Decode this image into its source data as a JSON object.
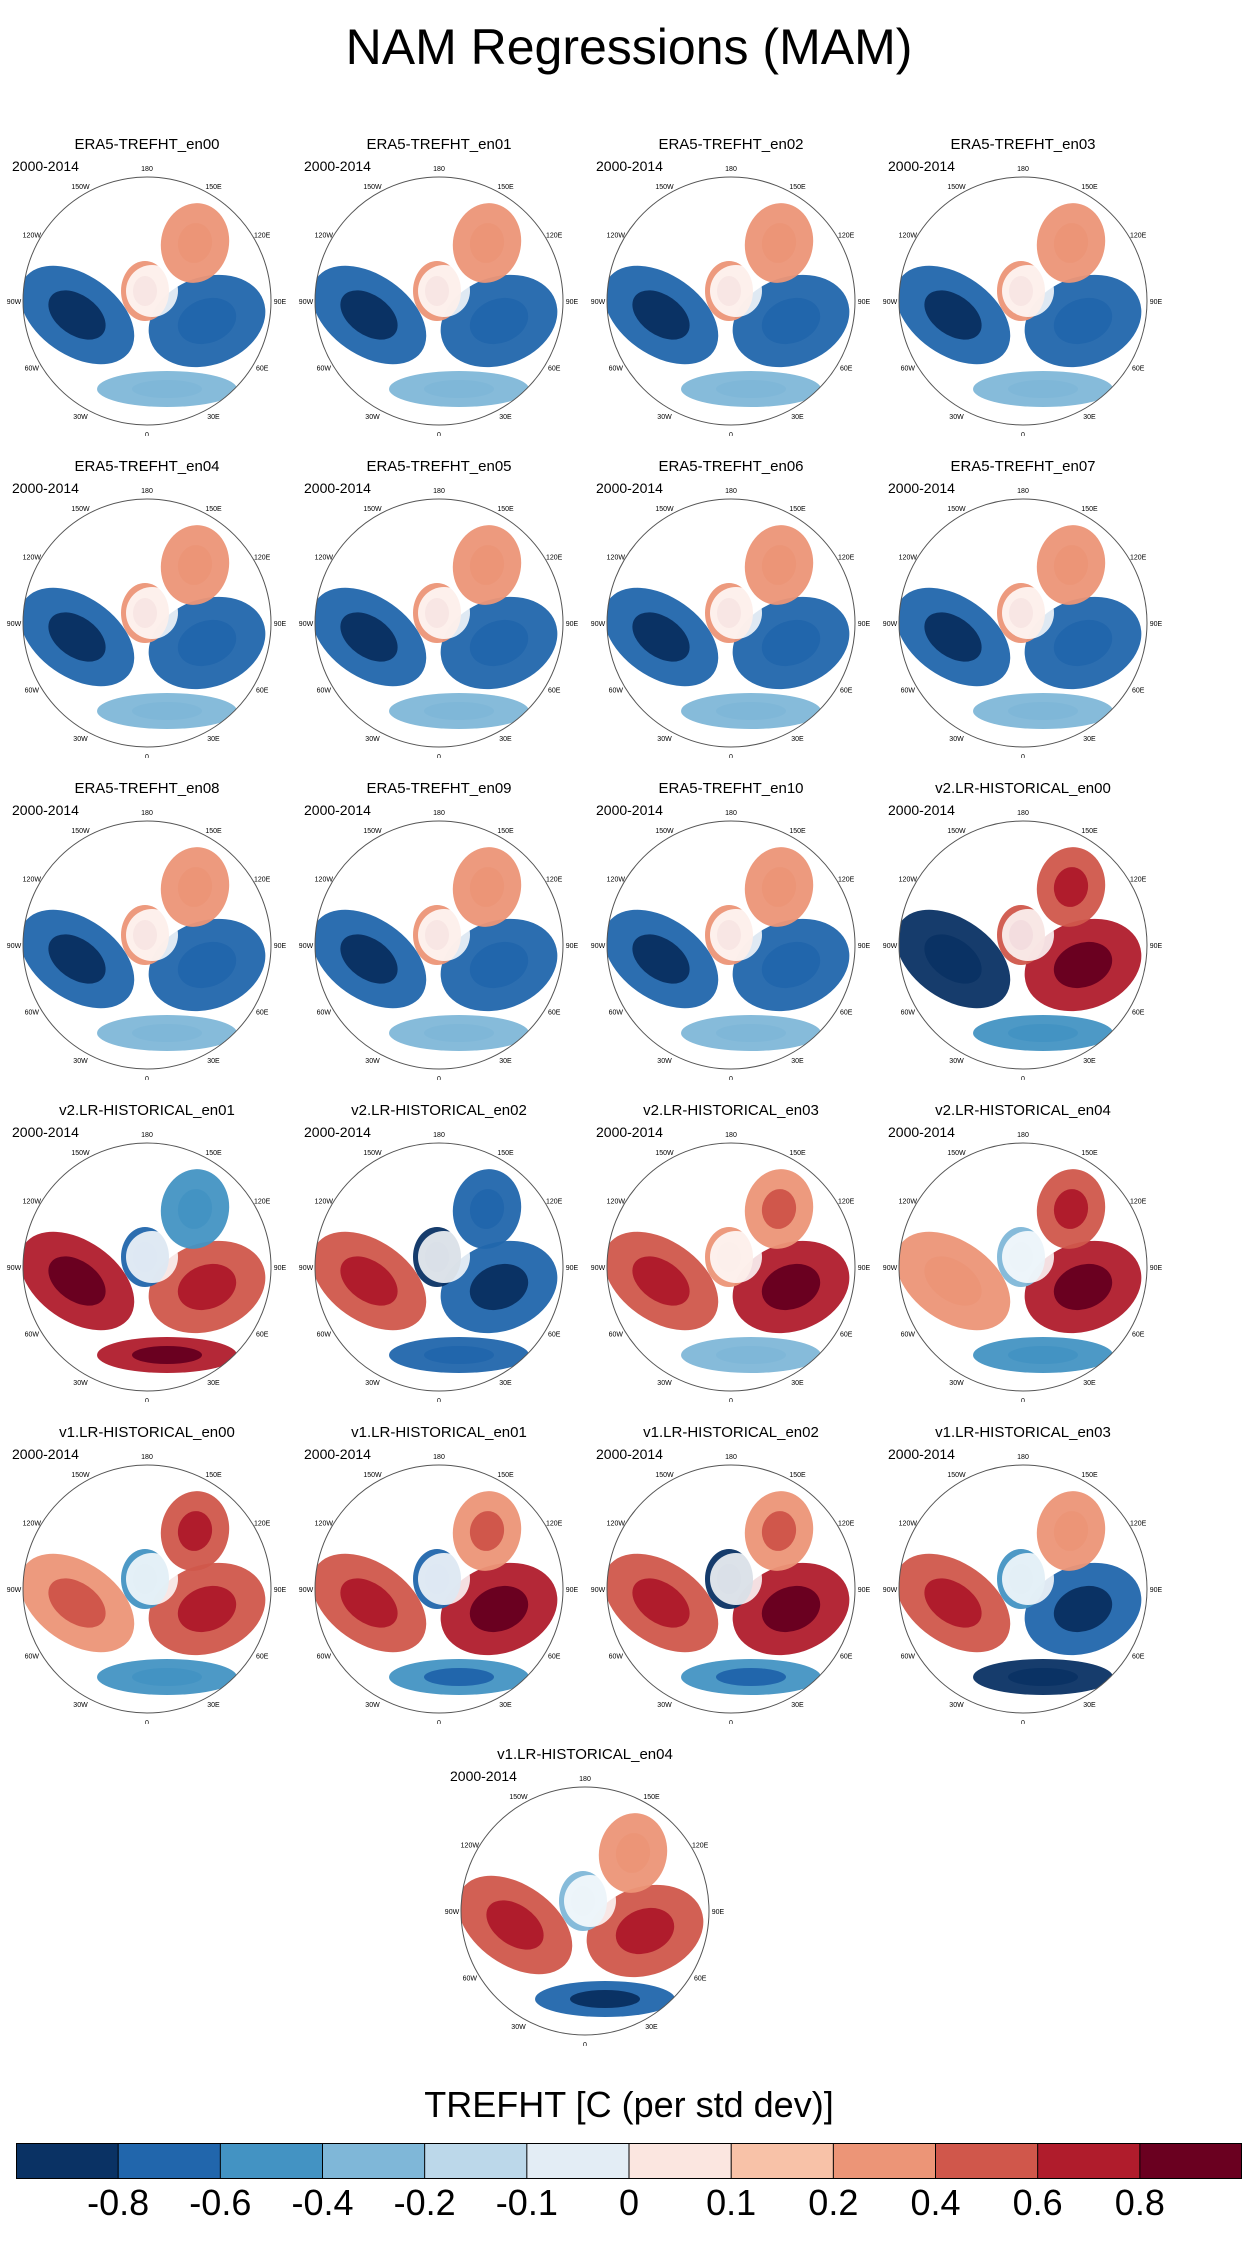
{
  "title": "NAM Regressions (MAM)",
  "panels": [
    {
      "title": "ERA5-TREFHT_en00",
      "period": "2000-2014"
    },
    {
      "title": "ERA5-TREFHT_en01",
      "period": "2000-2014"
    },
    {
      "title": "ERA5-TREFHT_en02",
      "period": "2000-2014"
    },
    {
      "title": "ERA5-TREFHT_en03",
      "period": "2000-2014"
    },
    {
      "title": "ERA5-TREFHT_en04",
      "period": "2000-2014"
    },
    {
      "title": "ERA5-TREFHT_en05",
      "period": "2000-2014"
    },
    {
      "title": "ERA5-TREFHT_en06",
      "period": "2000-2014"
    },
    {
      "title": "ERA5-TREFHT_en07",
      "period": "2000-2014"
    },
    {
      "title": "ERA5-TREFHT_en08",
      "period": "2000-2014"
    },
    {
      "title": "ERA5-TREFHT_en09",
      "period": "2000-2014"
    },
    {
      "title": "ERA5-TREFHT_en10",
      "period": "2000-2014"
    },
    {
      "title": "v2.LR-HISTORICAL_en00",
      "period": "2000-2014"
    },
    {
      "title": "v2.LR-HISTORICAL_en01",
      "period": "2000-2014"
    },
    {
      "title": "v2.LR-HISTORICAL_en02",
      "period": "2000-2014"
    },
    {
      "title": "v2.LR-HISTORICAL_en03",
      "period": "2000-2014"
    },
    {
      "title": "v2.LR-HISTORICAL_en04",
      "period": "2000-2014"
    },
    {
      "title": "v1.LR-HISTORICAL_en00",
      "period": "2000-2014"
    },
    {
      "title": "v1.LR-HISTORICAL_en01",
      "period": "2000-2014"
    },
    {
      "title": "v1.LR-HISTORICAL_en02",
      "period": "2000-2014"
    },
    {
      "title": "v1.LR-HISTORICAL_en03",
      "period": "2000-2014"
    },
    {
      "title": "v1.LR-HISTORICAL_en04",
      "period": "2000-2014"
    }
  ],
  "longitude_labels": [
    "180",
    "150E",
    "120E",
    "90E",
    "60E",
    "30E",
    "0",
    "30W",
    "60W",
    "90W",
    "120W",
    "150W"
  ],
  "colorbar": {
    "title": "TREFHT [C (per std dev)]",
    "colors": [
      "#0a3264",
      "#2166ac",
      "#4393c3",
      "#7fb7d8",
      "#bcd8ea",
      "#e3edf5",
      "#fbe6e0",
      "#f8c2a8",
      "#ec9577",
      "#d0574b",
      "#b01c2c",
      "#6a0020"
    ],
    "labels": [
      "-0.8",
      "-0.6",
      "-0.4",
      "-0.2",
      "-0.1",
      "0",
      "0.1",
      "0.2",
      "0.4",
      "0.6",
      "0.8"
    ]
  },
  "chart_data": {
    "type": "heatmap",
    "projection": "north polar stereographic",
    "variable": "TREFHT",
    "units": "C (per std dev)",
    "levels": [
      -0.8,
      -0.6,
      -0.4,
      -0.2,
      -0.1,
      0,
      0.1,
      0.2,
      0.4,
      0.6,
      0.8
    ],
    "panel_patterns": [
      {
        "name": "ERA5-TREFHT_en00",
        "north_america": -0.7,
        "eurasia": -0.6,
        "siberia_east": 0.3,
        "greenland": 0.4,
        "europe_atlantic": -0.3
      },
      {
        "name": "ERA5-TREFHT_en01",
        "north_america": -0.7,
        "eurasia": -0.6,
        "siberia_east": 0.3,
        "greenland": 0.4,
        "europe_atlantic": -0.3
      },
      {
        "name": "ERA5-TREFHT_en02",
        "north_america": -0.7,
        "eurasia": -0.6,
        "siberia_east": 0.3,
        "greenland": 0.4,
        "europe_atlantic": -0.3
      },
      {
        "name": "ERA5-TREFHT_en03",
        "north_america": -0.7,
        "eurasia": -0.6,
        "siberia_east": 0.3,
        "greenland": 0.4,
        "europe_atlantic": -0.3
      },
      {
        "name": "ERA5-TREFHT_en04",
        "north_america": -0.7,
        "eurasia": -0.6,
        "siberia_east": 0.3,
        "greenland": 0.4,
        "europe_atlantic": -0.3
      },
      {
        "name": "ERA5-TREFHT_en05",
        "north_america": -0.7,
        "eurasia": -0.6,
        "siberia_east": 0.3,
        "greenland": 0.4,
        "europe_atlantic": -0.3
      },
      {
        "name": "ERA5-TREFHT_en06",
        "north_america": -0.7,
        "eurasia": -0.6,
        "siberia_east": 0.3,
        "greenland": 0.4,
        "europe_atlantic": -0.3
      },
      {
        "name": "ERA5-TREFHT_en07",
        "north_america": -0.7,
        "eurasia": -0.6,
        "siberia_east": 0.3,
        "greenland": 0.4,
        "europe_atlantic": -0.3
      },
      {
        "name": "ERA5-TREFHT_en08",
        "north_america": -0.7,
        "eurasia": -0.6,
        "siberia_east": 0.3,
        "greenland": 0.4,
        "europe_atlantic": -0.3
      },
      {
        "name": "ERA5-TREFHT_en09",
        "north_america": -0.7,
        "eurasia": -0.6,
        "siberia_east": 0.3,
        "greenland": 0.4,
        "europe_atlantic": -0.3
      },
      {
        "name": "ERA5-TREFHT_en10",
        "north_america": -0.7,
        "eurasia": -0.6,
        "siberia_east": 0.3,
        "greenland": 0.4,
        "europe_atlantic": -0.3
      },
      {
        "name": "v2.LR-HISTORICAL_en00",
        "north_america": -0.8,
        "eurasia": 0.8,
        "siberia_east": 0.5,
        "greenland": 0.6,
        "europe_atlantic": -0.4
      },
      {
        "name": "v2.LR-HISTORICAL_en01",
        "north_america": 0.7,
        "eurasia": 0.6,
        "siberia_east": -0.4,
        "greenland": -0.6,
        "europe_atlantic": 0.8
      },
      {
        "name": "v2.LR-HISTORICAL_en02",
        "north_america": 0.6,
        "eurasia": -0.7,
        "siberia_east": -0.6,
        "greenland": -0.8,
        "europe_atlantic": -0.6
      },
      {
        "name": "v2.LR-HISTORICAL_en03",
        "north_america": 0.6,
        "eurasia": 0.7,
        "siberia_east": 0.4,
        "greenland": 0.3,
        "europe_atlantic": -0.3
      },
      {
        "name": "v2.LR-HISTORICAL_en04",
        "north_america": 0.3,
        "eurasia": 0.7,
        "siberia_east": 0.5,
        "greenland": -0.2,
        "europe_atlantic": -0.4
      },
      {
        "name": "v1.LR-HISTORICAL_en00",
        "north_america": 0.4,
        "eurasia": 0.6,
        "siberia_east": 0.5,
        "greenland": -0.4,
        "europe_atlantic": -0.4
      },
      {
        "name": "v1.LR-HISTORICAL_en01",
        "north_america": 0.6,
        "eurasia": 0.8,
        "siberia_east": 0.4,
        "greenland": -0.6,
        "europe_atlantic": -0.5
      },
      {
        "name": "v1.LR-HISTORICAL_en02",
        "north_america": 0.6,
        "eurasia": 0.8,
        "siberia_east": 0.4,
        "greenland": -0.8,
        "europe_atlantic": -0.5
      },
      {
        "name": "v1.LR-HISTORICAL_en03",
        "north_america": 0.5,
        "eurasia": -0.7,
        "siberia_east": 0.3,
        "greenland": -0.4,
        "europe_atlantic": -0.8
      },
      {
        "name": "v1.LR-HISTORICAL_en04",
        "north_america": 0.6,
        "eurasia": 0.5,
        "siberia_east": 0.3,
        "greenland": -0.2,
        "europe_atlantic": -0.7
      }
    ]
  }
}
